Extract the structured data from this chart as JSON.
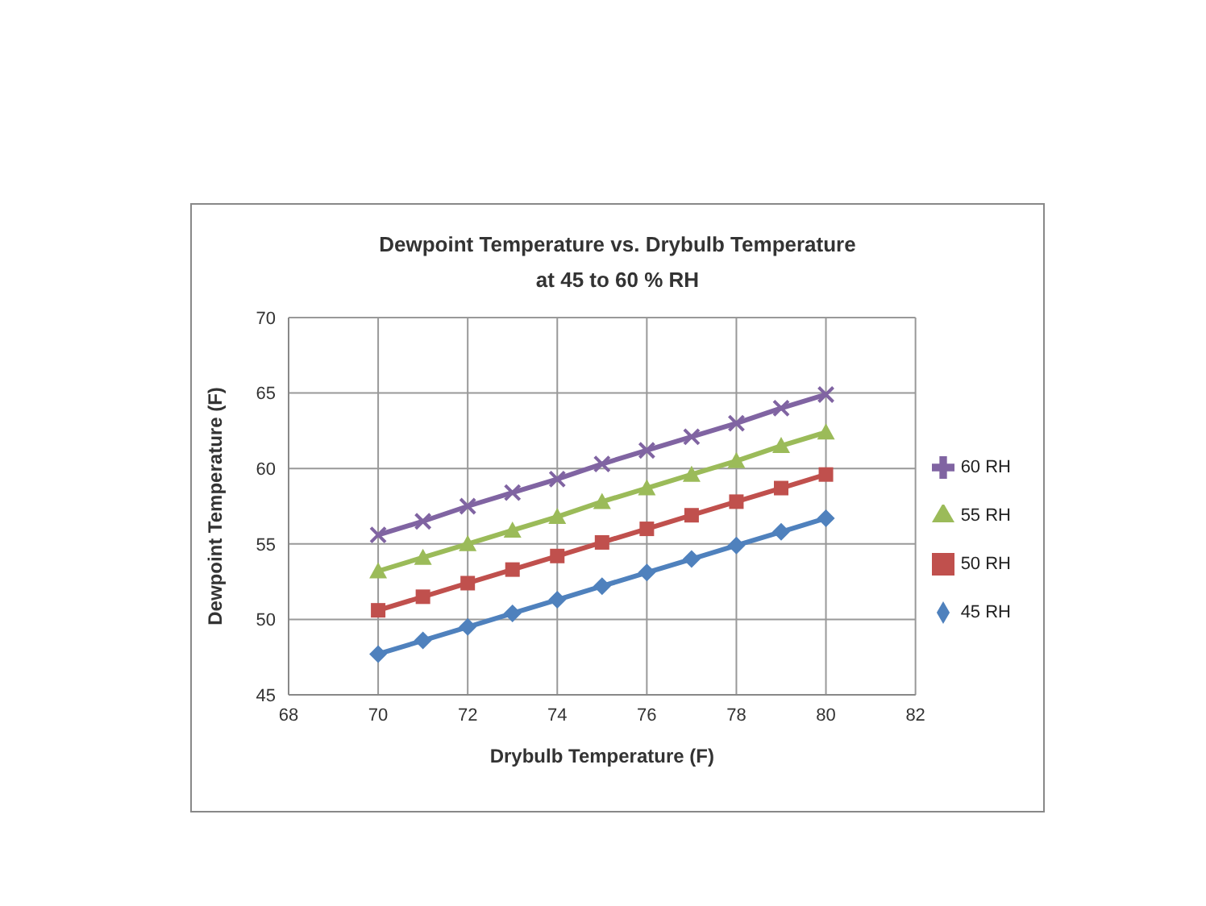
{
  "chart_data": {
    "type": "line",
    "title": "Dewpoint Temperature vs. Drybulb Temperature",
    "subtitle": "at 45 to 60 % RH",
    "xlabel": "Drybulb Temperature (F)",
    "ylabel": "Dewpoint Temperature (F)",
    "x": [
      70,
      71,
      72,
      73,
      74,
      75,
      76,
      77,
      78,
      79,
      80
    ],
    "series": [
      {
        "name": "60 RH",
        "color": "#8064a2",
        "marker": "cross",
        "values": [
          55.6,
          56.5,
          57.5,
          58.4,
          59.3,
          60.3,
          61.2,
          62.1,
          63.0,
          64.0,
          64.9
        ]
      },
      {
        "name": "55 RH",
        "color": "#9bbb59",
        "marker": "triangle",
        "values": [
          53.2,
          54.1,
          55.0,
          55.9,
          56.8,
          57.8,
          58.7,
          59.6,
          60.5,
          61.5,
          62.4
        ]
      },
      {
        "name": "50 RH",
        "color": "#c0504d",
        "marker": "square",
        "values": [
          50.6,
          51.5,
          52.4,
          53.3,
          54.2,
          55.1,
          56.0,
          56.9,
          57.8,
          58.7,
          59.6
        ]
      },
      {
        "name": "45 RH",
        "color": "#4f81bd",
        "marker": "diamond",
        "values": [
          47.7,
          48.6,
          49.5,
          50.4,
          51.3,
          52.2,
          53.1,
          54.0,
          54.9,
          55.8,
          56.7
        ]
      }
    ],
    "xlim": [
      68,
      82
    ],
    "xticks": [
      68,
      70,
      72,
      74,
      76,
      78,
      80,
      82
    ],
    "ylim": [
      45,
      70
    ],
    "yticks": [
      45,
      50,
      55,
      60,
      65,
      70
    ],
    "grid": true,
    "legend": "right"
  }
}
